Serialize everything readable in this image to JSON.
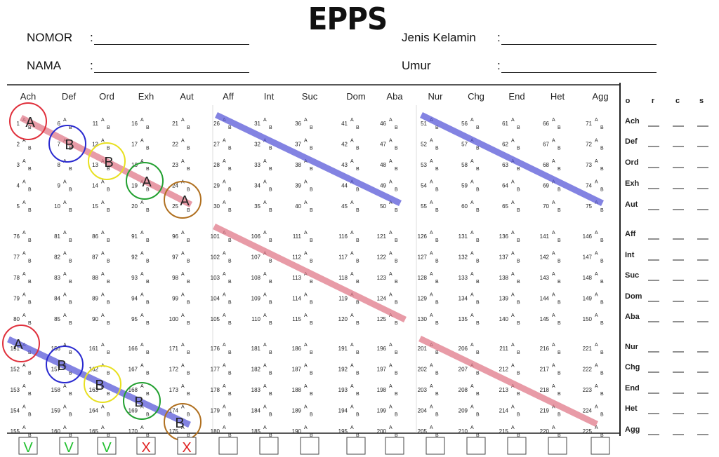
{
  "title": "EPPS",
  "header": {
    "nomor_label": "NOMOR",
    "nama_label": "NAMA",
    "jenis_kelamin_label": "Jenis Kelamin",
    "umur_label": "Umur",
    "colon": ":"
  },
  "column_headers": [
    "Ach",
    "Def",
    "Ord",
    "Exh",
    "Aut",
    "Aff",
    "Int",
    "Suc",
    "Dom",
    "Aba",
    "Nur",
    "Chg",
    "End",
    "Het",
    "Agg"
  ],
  "item_option_a": "A",
  "item_option_b": "B",
  "item_numbers_first": 1,
  "item_numbers_last": 225,
  "score_panel": {
    "columns": [
      "o",
      "r",
      "c",
      "s"
    ],
    "rows": [
      "Ach",
      "Def",
      "Ord",
      "Exh",
      "Aut",
      "Aff",
      "Int",
      "Suc",
      "Dom",
      "Aba",
      "Nur",
      "Chg",
      "End",
      "Het",
      "Agg"
    ]
  },
  "annotations": {
    "circled_answers_top": [
      "A",
      "B",
      "B",
      "A",
      "A"
    ],
    "circled_answers_bottom": [
      "A",
      "B",
      "B",
      "B",
      "B"
    ],
    "bottom_boxes": [
      "V",
      "V",
      "V",
      "X",
      "X",
      "",
      "",
      "",
      "",
      "",
      "",
      "",
      "",
      "",
      ""
    ],
    "colors": {
      "red": "#e0303c",
      "blue": "#2a2ad0",
      "yellow": "#e8e020",
      "green": "#22a030",
      "brown": "#b07020",
      "band_blue": "#5a5ad8",
      "band_pink": "#e07a8a",
      "check_green": "#22c030",
      "cross_red": "#e02020"
    }
  }
}
